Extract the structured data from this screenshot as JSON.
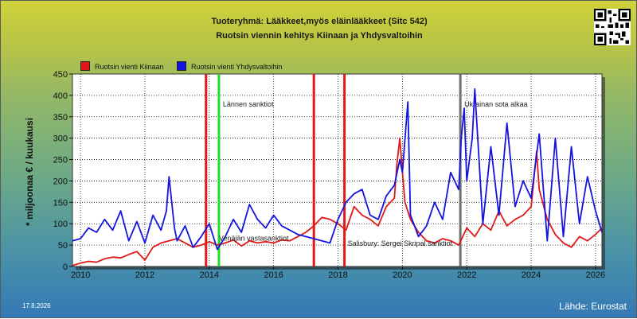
{
  "header": {
    "title": "Tuoteryhmä: Lääkkeet,myös eläinlääkkeet (Sitc 542)",
    "subtitle": "Ruotsin viennin kehitys  Kiinaan ja Yhdysvaltoihin"
  },
  "footer": {
    "date": "17.8.2026",
    "source": "Lähde: Eurostat"
  },
  "chart_data": {
    "type": "line",
    "title": "Tuoteryhmä: Lääkkeet,myös eläinlääkkeet (Sitc 542)",
    "subtitle": "Ruotsin viennin kehitys  Kiinaan ja Yhdysvaltoihin",
    "xlabel": "",
    "ylabel": "* miljoonaa € / kuukausi",
    "xlim": [
      2009.75,
      2026.2
    ],
    "ylim": [
      0,
      450
    ],
    "yticks": [
      "0",
      "50",
      "100",
      "150",
      "200",
      "250",
      "300",
      "350",
      "400",
      "450"
    ],
    "xticks": [
      "2010",
      "2012",
      "2014",
      "2016",
      "2018",
      "2020",
      "2022",
      "2024",
      "2026"
    ],
    "grid": true,
    "legend_position": "top-left",
    "series": [
      {
        "name": "Ruotsin vienti Kiinaan",
        "color": "#e01818",
        "x": [
          2009.75,
          2010.0,
          2010.25,
          2010.5,
          2010.75,
          2011.0,
          2011.25,
          2011.5,
          2011.75,
          2012.0,
          2012.25,
          2012.5,
          2012.75,
          2013.0,
          2013.25,
          2013.5,
          2013.75,
          2014.0,
          2014.25,
          2014.5,
          2014.75,
          2015.0,
          2015.25,
          2015.5,
          2015.75,
          2016.0,
          2016.25,
          2016.5,
          2016.75,
          2017.0,
          2017.25,
          2017.5,
          2017.75,
          2018.0,
          2018.25,
          2018.5,
          2018.75,
          2019.0,
          2019.25,
          2019.5,
          2019.75,
          2019.83,
          2019.92,
          2020.0,
          2020.08,
          2020.25,
          2020.5,
          2020.75,
          2021.0,
          2021.25,
          2021.5,
          2021.75,
          2022.0,
          2022.25,
          2022.5,
          2022.75,
          2023.0,
          2023.25,
          2023.5,
          2023.75,
          2024.0,
          2024.08,
          2024.17,
          2024.25,
          2024.5,
          2024.75,
          2025.0,
          2025.25,
          2025.5,
          2025.75,
          2026.0,
          2026.2
        ],
        "y": [
          2,
          8,
          12,
          10,
          18,
          22,
          20,
          28,
          35,
          15,
          45,
          55,
          60,
          65,
          55,
          45,
          50,
          58,
          50,
          55,
          62,
          48,
          60,
          55,
          58,
          55,
          62,
          60,
          70,
          80,
          95,
          115,
          110,
          100,
          85,
          140,
          120,
          110,
          95,
          140,
          160,
          240,
          300,
          220,
          150,
          110,
          80,
          60,
          55,
          65,
          60,
          50,
          90,
          70,
          100,
          85,
          130,
          95,
          110,
          120,
          140,
          200,
          270,
          180,
          110,
          75,
          55,
          45,
          70,
          60,
          75,
          90
        ]
      },
      {
        "name": "Ruotsin vienti Yhdysvaltoihin",
        "color": "#1414e0",
        "x": [
          2009.75,
          2010.0,
          2010.25,
          2010.5,
          2010.75,
          2011.0,
          2011.25,
          2011.5,
          2011.75,
          2012.0,
          2012.25,
          2012.5,
          2012.67,
          2012.75,
          2012.92,
          2013.0,
          2013.25,
          2013.5,
          2013.75,
          2014.0,
          2014.25,
          2014.5,
          2014.75,
          2015.0,
          2015.25,
          2015.5,
          2015.75,
          2016.0,
          2016.25,
          2016.5,
          2016.75,
          2017.0,
          2017.25,
          2017.5,
          2017.75,
          2018.0,
          2018.25,
          2018.5,
          2018.75,
          2019.0,
          2019.25,
          2019.5,
          2019.75,
          2019.92,
          2020.0,
          2020.17,
          2020.25,
          2020.5,
          2020.75,
          2021.0,
          2021.25,
          2021.5,
          2021.75,
          2021.83,
          2021.92,
          2022.0,
          2022.17,
          2022.25,
          2022.5,
          2022.75,
          2023.0,
          2023.25,
          2023.5,
          2023.75,
          2024.0,
          2024.25,
          2024.5,
          2024.75,
          2025.0,
          2025.25,
          2025.5,
          2025.75,
          2026.0,
          2026.2
        ],
        "y": [
          60,
          65,
          90,
          80,
          110,
          85,
          130,
          60,
          105,
          55,
          120,
          85,
          130,
          210,
          90,
          60,
          95,
          45,
          70,
          100,
          40,
          70,
          110,
          80,
          145,
          110,
          90,
          120,
          95,
          85,
          75,
          70,
          65,
          60,
          55,
          110,
          150,
          170,
          180,
          120,
          110,
          165,
          190,
          250,
          220,
          385,
          120,
          70,
          95,
          150,
          110,
          220,
          180,
          300,
          370,
          200,
          300,
          415,
          100,
          280,
          120,
          335,
          140,
          200,
          160,
          310,
          60,
          300,
          70,
          280,
          100,
          210,
          130,
          80
        ]
      }
    ],
    "markers": [
      {
        "x": 2013.9,
        "color": "#e01818",
        "label": ""
      },
      {
        "x": 2014.3,
        "color": "#22dd22",
        "label": "Lännen sanktiot"
      },
      {
        "x": 2017.25,
        "color": "#e01818",
        "label": ""
      },
      {
        "x": 2018.2,
        "color": "#e01818",
        "label": ""
      },
      {
        "x": 2021.8,
        "color": "#707070",
        "label": "Ukrainan sota alkaa"
      }
    ],
    "annotations": [
      {
        "x": 2014.3,
        "y": 60,
        "text": "Venäjän vastasanktiot"
      },
      {
        "x": 2018.3,
        "y": 48,
        "text": "Salisbury: Sergei Skripal sanktiot"
      }
    ]
  }
}
